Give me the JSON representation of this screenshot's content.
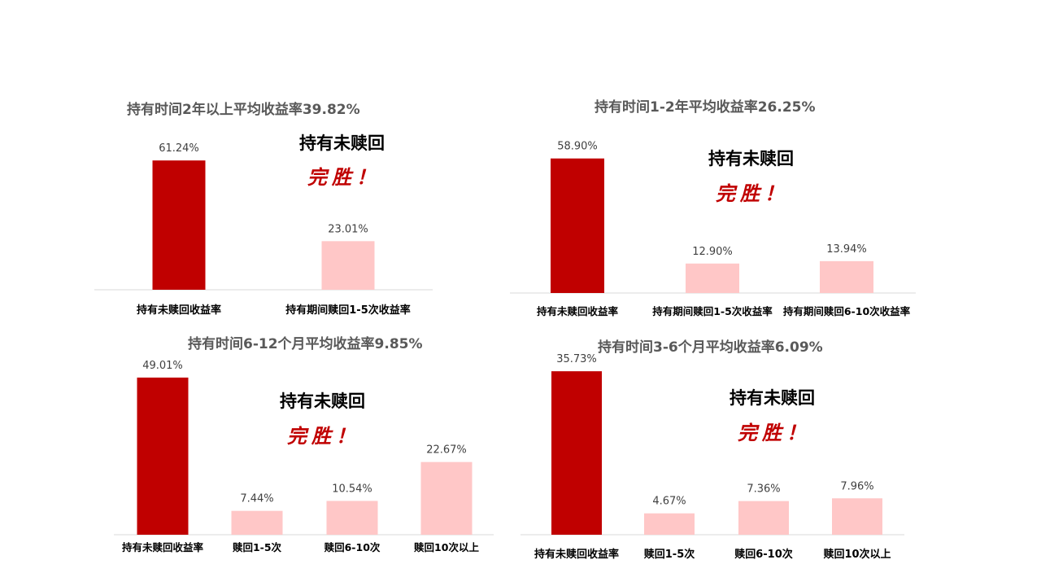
{
  "colors": {
    "highlight": "#c00000",
    "other": "#ffc7c7",
    "axis": "#d9d9d9",
    "label": "#404040"
  },
  "chart_data": [
    {
      "type": "bar",
      "title": "持有时间2年以上平均收益率39.82%",
      "categories": [
        "持有未赎回收益率",
        "持有期间赎回1-5次收益率"
      ],
      "values": [
        61.24,
        23.01
      ],
      "value_labels": [
        "61.24%",
        "23.01%"
      ],
      "ylim": [
        0,
        64
      ],
      "annotation": {
        "line1": "持有未赎回",
        "line2": "完胜！"
      }
    },
    {
      "type": "bar",
      "title": "持有时间1-2年平均收益率26.25%",
      "categories": [
        "持有未赎回收益率",
        "持有期间赎回1-5次收益率",
        "持有期间赎回6-10次收益率"
      ],
      "values": [
        58.9,
        12.9,
        13.94
      ],
      "value_labels": [
        "58.90%",
        "12.90%",
        "13.94%"
      ],
      "ylim": [
        0,
        62
      ],
      "annotation": {
        "line1": "持有未赎回",
        "line2": "完胜！"
      }
    },
    {
      "type": "bar",
      "title": "持有时间6-12个月平均收益率9.85%",
      "categories": [
        "持有未赎回收益率",
        "赎回1-5次",
        "赎回6-10次",
        "赎回10次以上"
      ],
      "values": [
        49.01,
        7.44,
        10.54,
        22.67
      ],
      "value_labels": [
        "49.01%",
        "7.44%",
        "10.54%",
        "22.67%"
      ],
      "ylim": [
        0,
        50
      ],
      "annotation": {
        "line1": "持有未赎回",
        "line2": "完胜！"
      }
    },
    {
      "type": "bar",
      "title": "持有时间3-6个月平均收益率6.09%",
      "categories": [
        "持有未赎回收益率",
        "赎回1-5次",
        "赎回6-10次",
        "赎回10次以上"
      ],
      "values": [
        35.73,
        4.67,
        7.36,
        7.96
      ],
      "value_labels": [
        "35.73%",
        "4.67%",
        "7.36%",
        "7.96%"
      ],
      "ylim": [
        0,
        37
      ],
      "annotation": {
        "line1": "持有未赎回",
        "line2": "完胜！"
      }
    }
  ]
}
